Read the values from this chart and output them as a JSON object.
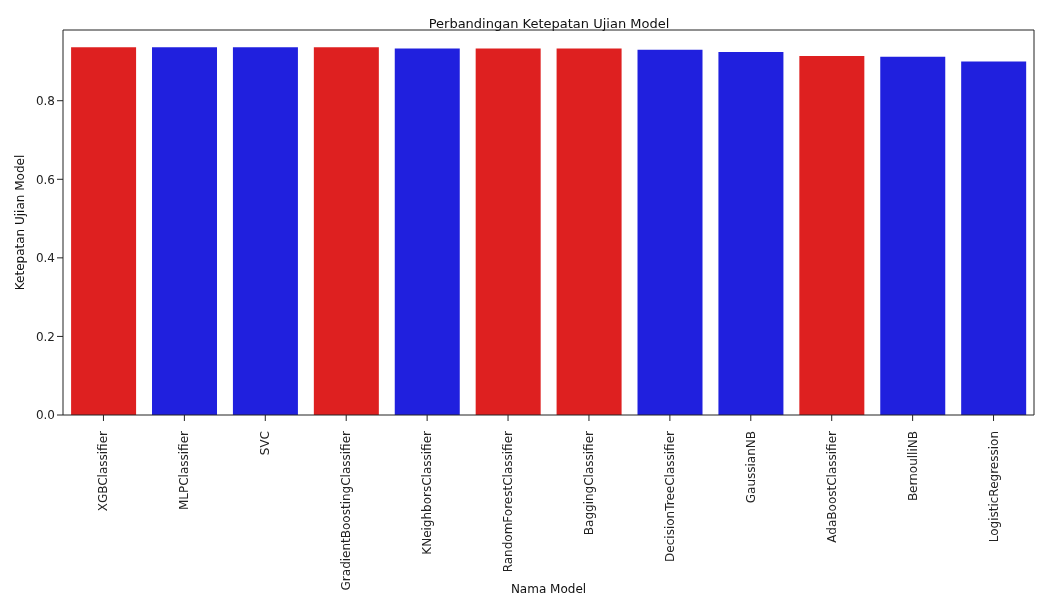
{
  "chart_data": {
    "type": "bar",
    "title": "Perbandingan Ketepatan Ujian Model",
    "xlabel": "Nama Model",
    "ylabel": "Ketepatan Ujian Model",
    "categories": [
      "XGBClassifier",
      "MLPClassifier",
      "SVC",
      "GradientBoostingClassifier",
      "KNeighborsClassifier",
      "RandomForestClassifier",
      "BaggingClassifier",
      "DecisionTreeClassifier",
      "GaussianNB",
      "AdaBoostClassifier",
      "BernoulliNB",
      "LogisticRegression"
    ],
    "values": [
      0.936,
      0.936,
      0.936,
      0.936,
      0.933,
      0.933,
      0.933,
      0.93,
      0.924,
      0.914,
      0.912,
      0.9
    ],
    "colors": [
      "#de2020",
      "#2020de",
      "#2020de",
      "#de2020",
      "#2020de",
      "#de2020",
      "#de2020",
      "#2020de",
      "#2020de",
      "#de2020",
      "#2020de",
      "#2020de"
    ],
    "ylim": [
      0,
      0.98
    ],
    "yticks": [
      {
        "value": 0,
        "label": "0.0"
      },
      0.2,
      0.4,
      0.6,
      0.8
    ],
    "grid": false,
    "legend": false
  }
}
